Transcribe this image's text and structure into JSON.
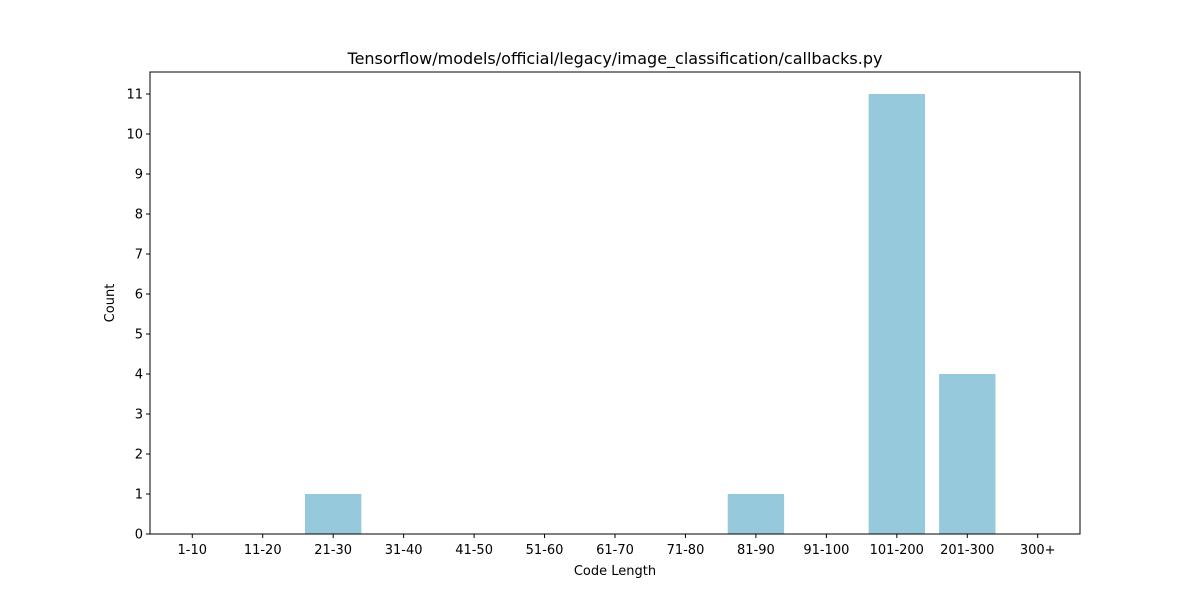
{
  "chart_data": {
    "type": "bar",
    "title": "Tensorflow/models/official/legacy/image_classification/callbacks.py",
    "xlabel": "Code Length",
    "ylabel": "Count",
    "categories": [
      "1-10",
      "11-20",
      "21-30",
      "31-40",
      "41-50",
      "51-60",
      "61-70",
      "71-80",
      "81-90",
      "91-100",
      "101-200",
      "201-300",
      "300+"
    ],
    "values": [
      0,
      0,
      1,
      0,
      0,
      0,
      0,
      0,
      1,
      0,
      11,
      4,
      0
    ],
    "yticks": [
      0,
      1,
      2,
      3,
      4,
      5,
      6,
      7,
      8,
      9,
      10,
      11
    ],
    "ylim": [
      0,
      11.55
    ],
    "grid": false,
    "legend": "none",
    "bar_color": "#96c9dc"
  }
}
